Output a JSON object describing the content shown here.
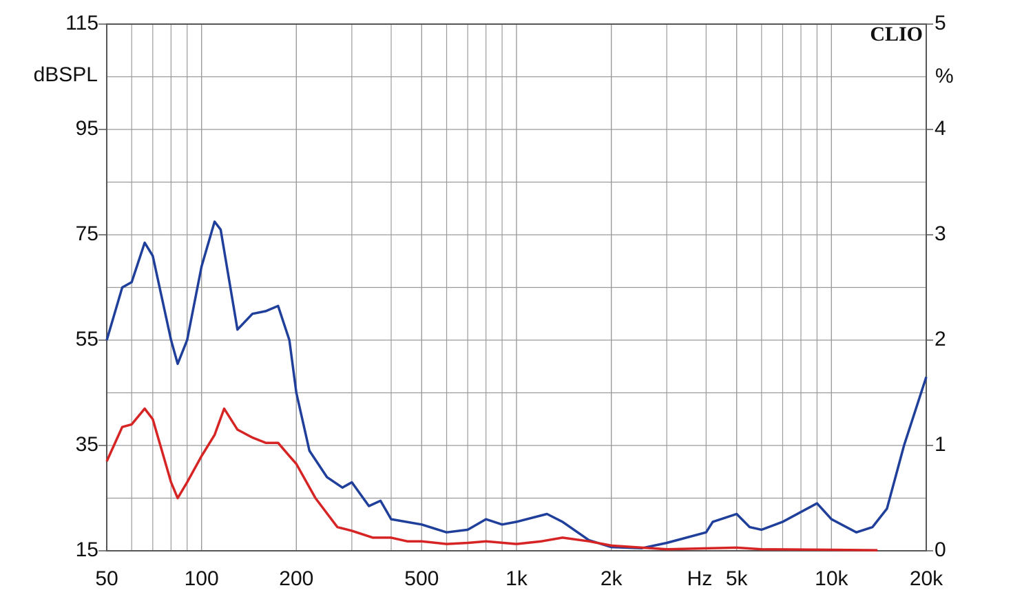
{
  "chart_data": {
    "type": "line",
    "brand": "CLIO",
    "y_label": "dBSPL",
    "y2_label": "%",
    "x_label": "Hz",
    "xscale": "log",
    "xlim": [
      50,
      20000
    ],
    "xticks": [
      50,
      100,
      200,
      500,
      {
        "value": 1000,
        "label": "1k"
      },
      {
        "value": 2000,
        "label": "2k"
      },
      {
        "value": 5000,
        "label": "5k"
      },
      {
        "value": 10000,
        "label": "10k"
      },
      {
        "value": 20000,
        "label": "20k"
      }
    ],
    "ylim": [
      15,
      115
    ],
    "yticks": [
      15,
      35,
      55,
      75,
      95,
      115
    ],
    "y2lim": [
      0,
      5
    ],
    "y2ticks": [
      0,
      1,
      2,
      3,
      4,
      5
    ],
    "grid": true,
    "series": [
      {
        "color": "#1f3f9a",
        "x": [
          50,
          56,
          60,
          66,
          70,
          80,
          84,
          90,
          100,
          110,
          115,
          130,
          145,
          160,
          175,
          190,
          200,
          220,
          250,
          280,
          300,
          340,
          370,
          400,
          500,
          600,
          700,
          800,
          900,
          1000,
          1250,
          1400,
          1700,
          2000,
          2500,
          3000,
          4000,
          4200,
          5000,
          5500,
          6000,
          7000,
          9000,
          10000,
          12000,
          13500,
          15000,
          17000,
          20000
        ],
        "values": [
          55,
          65,
          66,
          73.5,
          71,
          55,
          50.5,
          55,
          69,
          77.5,
          76,
          57,
          60,
          60.5,
          61.5,
          55,
          45,
          34,
          29,
          27,
          28,
          23.5,
          24.5,
          21,
          20,
          18.5,
          19,
          21,
          20,
          20.5,
          22,
          20.5,
          17,
          15.7,
          15.5,
          16.5,
          18.5,
          20.5,
          22,
          19.5,
          19,
          20.5,
          24,
          21,
          18.5,
          19.5,
          23,
          35,
          48
        ]
      },
      {
        "color": "#d62424",
        "x": [
          50,
          56,
          60,
          66,
          70,
          80,
          84,
          90,
          100,
          110,
          118,
          130,
          145,
          160,
          175,
          190,
          200,
          230,
          270,
          300,
          350,
          400,
          450,
          500,
          600,
          700,
          800,
          1000,
          1200,
          1400,
          1700,
          2000,
          3000,
          5000,
          6000,
          10000,
          14000
        ],
        "values": [
          32,
          38.5,
          39,
          42,
          40,
          28,
          25,
          28,
          33,
          37,
          42,
          38,
          36.5,
          35.5,
          35.5,
          33,
          31.5,
          25,
          19.5,
          18.8,
          17.5,
          17.5,
          16.8,
          16.8,
          16.3,
          16.5,
          16.8,
          16.3,
          16.8,
          17.5,
          16.8,
          16,
          15.3,
          15.6,
          15.3,
          15.2,
          15.1
        ]
      }
    ]
  }
}
